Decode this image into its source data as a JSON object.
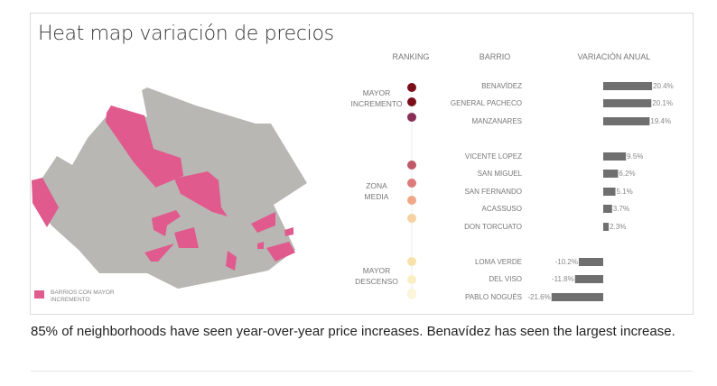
{
  "chart_data": {
    "type": "bar",
    "title": "Heat map variación de precios",
    "headers": {
      "ranking": "RANKING",
      "barrio": "BARRIO",
      "variacion": "VARIACIÓN ANUAL"
    },
    "groups": [
      {
        "label": [
          "MAYOR",
          "INCREMENTO"
        ],
        "rows": [
          0,
          1,
          2
        ]
      },
      {
        "label": [
          "ZONA",
          "MEDIA"
        ],
        "rows": [
          3,
          4,
          5,
          6,
          7
        ]
      },
      {
        "label": [
          "MAYOR",
          "DESCENSO"
        ],
        "rows": [
          8,
          9,
          10
        ]
      }
    ],
    "categories": [
      "BENAVÍDEZ",
      "GENERAL PACHECO",
      "MANZANARES",
      "VICENTE LOPEZ",
      "SAN MIGUEL",
      "SAN FERNANDO",
      "ACASSUSO",
      "DON TORCUATO",
      "LOMA VERDE",
      "DEL VISO",
      "PABLO NOGUÉS"
    ],
    "values": [
      20.4,
      20.1,
      19.4,
      9.5,
      6.2,
      5.1,
      3.7,
      2.3,
      -10.2,
      -11.8,
      -21.6
    ],
    "value_labels": [
      "20.4%",
      "20.1%",
      "19.4%",
      "9.5%",
      "6.2%",
      "5.1%",
      "3.7%",
      "2.3%",
      "-10.2%",
      "-11.8%",
      "-21.6%"
    ],
    "dot_colors": [
      "#7a0f1a",
      "#7a0f1a",
      "#8a3058",
      "#c0596a",
      "#dc7c7a",
      "#f0a888",
      "#f6d2a0",
      "#f8e2aa",
      "#faeec4",
      "#fcf4d8",
      "#fcf5dc"
    ],
    "bar_color": "#6f6f6f",
    "legend": {
      "label": [
        "BARRIOS CON MAYOR",
        "INCREMENTO"
      ],
      "color": "#e05a8d"
    },
    "map_colors": {
      "base": "#b9b7b3",
      "highlight": "#e05a8d"
    }
  },
  "caption": "85% of neighborhoods have seen year-over-year price increases. Benavídez has seen the largest increase."
}
